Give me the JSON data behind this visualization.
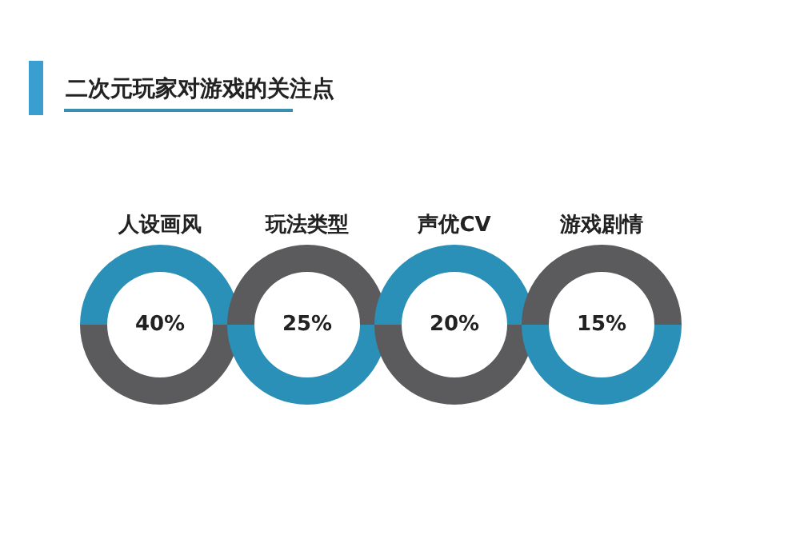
{
  "chart_data": {
    "type": "other",
    "title": "二次元玩家对游戏的关注点",
    "categories": [
      "人设画风",
      "玩法类型",
      "声优CV",
      "游戏剧情"
    ],
    "values": [
      40,
      25,
      20,
      15
    ],
    "value_labels": [
      "40%",
      "25%",
      "20%",
      "15%"
    ],
    "colors": [
      "#2a90b8",
      "#5b5b5d",
      "#2a90b8",
      "#5b5b5d"
    ]
  }
}
